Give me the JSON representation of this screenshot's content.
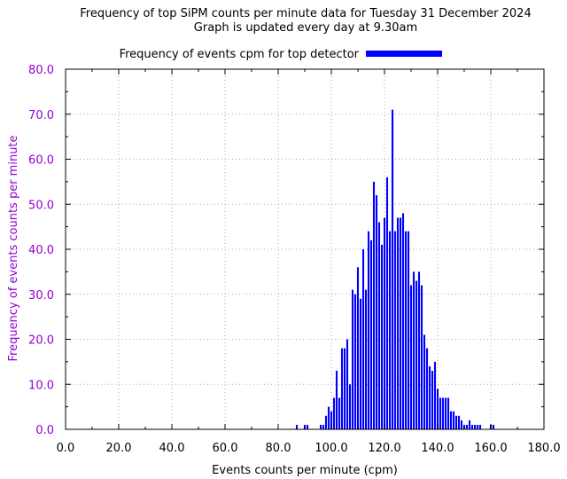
{
  "chart_data": {
    "type": "bar",
    "title_lines": [
      "Frequency of top SiPM counts per minute data for Tuesday 31 December 2024",
      "Graph is updated every day at 9.30am"
    ],
    "xlabel": "Events counts per minute (cpm)",
    "ylabel": "Frequency of events counts per minute",
    "xlim": [
      0,
      180
    ],
    "ylim": [
      0,
      80
    ],
    "x_ticks": [
      "0.0",
      "20.0",
      "40.0",
      "60.0",
      "80.0",
      "100.0",
      "120.0",
      "140.0",
      "160.0",
      "180.0"
    ],
    "y_ticks": [
      "0.0",
      "10.0",
      "20.0",
      "30.0",
      "40.0",
      "50.0",
      "60.0",
      "70.0",
      "80.0"
    ],
    "grid": true,
    "legend_position": "top-center",
    "colors": {
      "bar": "#0000ff",
      "y_axis_text": "#9400d3",
      "grid": "#aaaaaa"
    },
    "series": [
      {
        "name": "Frequency of events cpm for top detector",
        "x": [
          87,
          90,
          91,
          96,
          97,
          98,
          99,
          100,
          101,
          102,
          103,
          104,
          105,
          106,
          107,
          108,
          109,
          110,
          111,
          112,
          113,
          114,
          115,
          116,
          117,
          118,
          119,
          120,
          121,
          122,
          123,
          124,
          125,
          126,
          127,
          128,
          129,
          130,
          131,
          132,
          133,
          134,
          135,
          136,
          137,
          138,
          139,
          140,
          141,
          142,
          143,
          144,
          145,
          146,
          147,
          148,
          149,
          150,
          151,
          152,
          153,
          154,
          155,
          156,
          160,
          161
        ],
        "values": [
          1,
          1,
          1,
          1,
          1,
          3,
          5,
          4,
          7,
          13,
          7,
          18,
          18,
          20,
          10,
          31,
          30,
          36,
          29,
          40,
          31,
          44,
          42,
          55,
          52,
          46,
          41,
          47,
          56,
          44,
          71,
          44,
          47,
          47,
          48,
          44,
          44,
          32,
          35,
          33,
          35,
          32,
          21,
          18,
          14,
          13,
          15,
          9,
          7,
          7,
          7,
          7,
          4,
          4,
          3,
          3,
          2,
          1,
          1,
          2,
          1,
          1,
          1,
          1,
          1,
          1
        ]
      }
    ]
  }
}
